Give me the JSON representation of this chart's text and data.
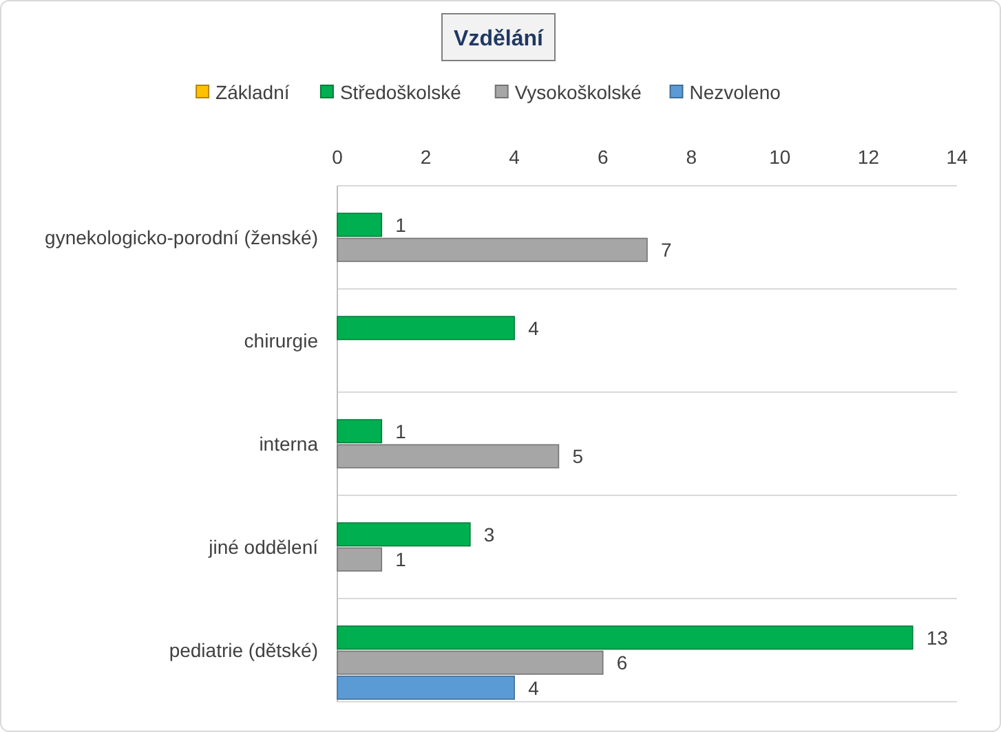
{
  "chart_data": {
    "type": "bar",
    "orientation": "horizontal",
    "title": "Vzdělání",
    "categories": [
      "gynekologicko-porodní (ženské)",
      "chirurgie",
      "interna",
      "jiné oddělení",
      "pediatrie (dětské)"
    ],
    "series": [
      {
        "name": "Základní",
        "color": "#ffc000",
        "values": [
          null,
          null,
          null,
          null,
          null
        ]
      },
      {
        "name": "Středoškolské",
        "color": "#00b050",
        "values": [
          1,
          4,
          1,
          3,
          13
        ]
      },
      {
        "name": "Vysokoškolské",
        "color": "#a6a6a6",
        "values": [
          7,
          null,
          5,
          1,
          6
        ]
      },
      {
        "name": "Nezvoleno",
        "color": "#5b9bd5",
        "values": [
          null,
          null,
          null,
          null,
          4
        ]
      }
    ],
    "xlim": [
      0,
      14
    ],
    "xticks": [
      0,
      2,
      4,
      6,
      8,
      10,
      12,
      14
    ],
    "grid": "y",
    "legend": "top",
    "data_labels": true
  }
}
